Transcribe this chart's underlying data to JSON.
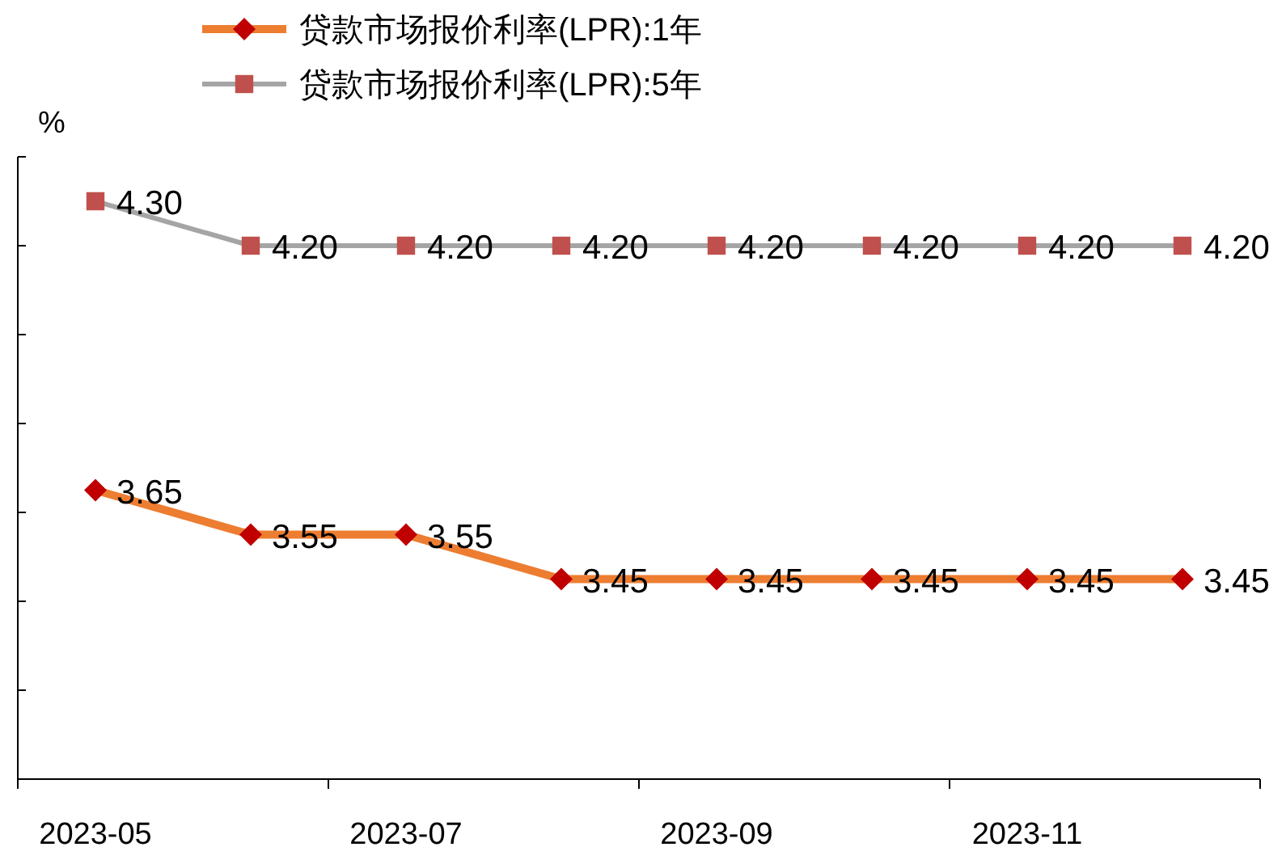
{
  "chart_data": {
    "type": "line",
    "ylabel": "%",
    "categories": [
      "2023-05",
      null,
      "2023-07",
      null,
      "2023-09",
      null,
      "2023-11",
      null
    ],
    "series": [
      {
        "name": "贷款市场报价利率(LPR):1年",
        "color": "#ed7d31",
        "colors": [
          "#c00000",
          "#c00000",
          "#c00000",
          "#c00000",
          "#c00000",
          "#c00000",
          "#c00000",
          "#c00000"
        ],
        "marker": "diamond",
        "values": [
          3.65,
          3.55,
          3.55,
          3.45,
          3.45,
          3.45,
          3.45,
          3.45
        ],
        "value_labels": [
          "3.65",
          "3.55",
          "3.55",
          "3.45",
          "3.45",
          "3.45",
          "3.45",
          "3.45"
        ]
      },
      {
        "name": "贷款市场报价利率(LPR):5年",
        "color": "#a5a5a5",
        "colors": [
          "#c0504d",
          "#c0504d",
          "#c0504d",
          "#c0504d",
          "#c0504d",
          "#c0504d",
          "#c0504d",
          "#c0504d"
        ],
        "marker": "square",
        "values": [
          4.3,
          4.2,
          4.2,
          4.2,
          4.2,
          4.2,
          4.2,
          4.2
        ],
        "value_labels": [
          "4.30",
          "4.20",
          "4.20",
          "4.20",
          "4.20",
          "4.20",
          "4.20",
          "4.20"
        ]
      }
    ],
    "ylim": [
      3.0,
      4.4
    ],
    "yticks": [
      {
        "value": 3.0,
        "label": null
      },
      {
        "value": 3.2,
        "label": null
      },
      {
        "value": 3.4,
        "label": null
      },
      {
        "value": 3.6,
        "label": null
      },
      {
        "value": 3.8,
        "label": null
      },
      {
        "value": 4.0,
        "label": null
      },
      {
        "value": 4.2,
        "label": null
      },
      {
        "value": 4.4,
        "label": null
      }
    ],
    "grid": false,
    "legend": "top",
    "line_style": "solid"
  }
}
